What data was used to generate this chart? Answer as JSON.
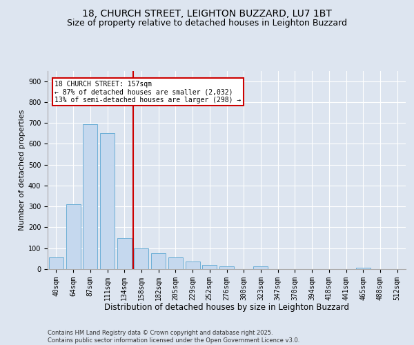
{
  "title1": "18, CHURCH STREET, LEIGHTON BUZZARD, LU7 1BT",
  "title2": "Size of property relative to detached houses in Leighton Buzzard",
  "xlabel": "Distribution of detached houses by size in Leighton Buzzard",
  "ylabel": "Number of detached properties",
  "categories": [
    "40sqm",
    "64sqm",
    "87sqm",
    "111sqm",
    "134sqm",
    "158sqm",
    "182sqm",
    "205sqm",
    "229sqm",
    "252sqm",
    "276sqm",
    "300sqm",
    "323sqm",
    "347sqm",
    "370sqm",
    "394sqm",
    "418sqm",
    "441sqm",
    "465sqm",
    "488sqm",
    "512sqm"
  ],
  "values": [
    55,
    310,
    695,
    650,
    150,
    100,
    75,
    55,
    38,
    20,
    13,
    0,
    13,
    0,
    0,
    0,
    0,
    0,
    8,
    0,
    0
  ],
  "bar_color": "#c5d8ee",
  "bar_edge_color": "#6baed6",
  "bar_linewidth": 0.7,
  "property_line_index": 5,
  "property_line_color": "#cc0000",
  "ylim": [
    0,
    950
  ],
  "yticks": [
    0,
    100,
    200,
    300,
    400,
    500,
    600,
    700,
    800,
    900
  ],
  "annotation_text": "18 CHURCH STREET: 157sqm\n← 87% of detached houses are smaller (2,032)\n13% of semi-detached houses are larger (298) →",
  "annotation_box_facecolor": "#ffffff",
  "annotation_box_edgecolor": "#cc0000",
  "bg_color": "#dde5f0",
  "plot_bg_color": "#dde5f0",
  "grid_color": "#ffffff",
  "footer_text": "Contains HM Land Registry data © Crown copyright and database right 2025.\nContains public sector information licensed under the Open Government Licence v3.0.",
  "title1_fontsize": 10,
  "title2_fontsize": 9,
  "xlabel_fontsize": 8.5,
  "ylabel_fontsize": 8,
  "tick_fontsize": 7,
  "annotation_fontsize": 7,
  "footer_fontsize": 6
}
